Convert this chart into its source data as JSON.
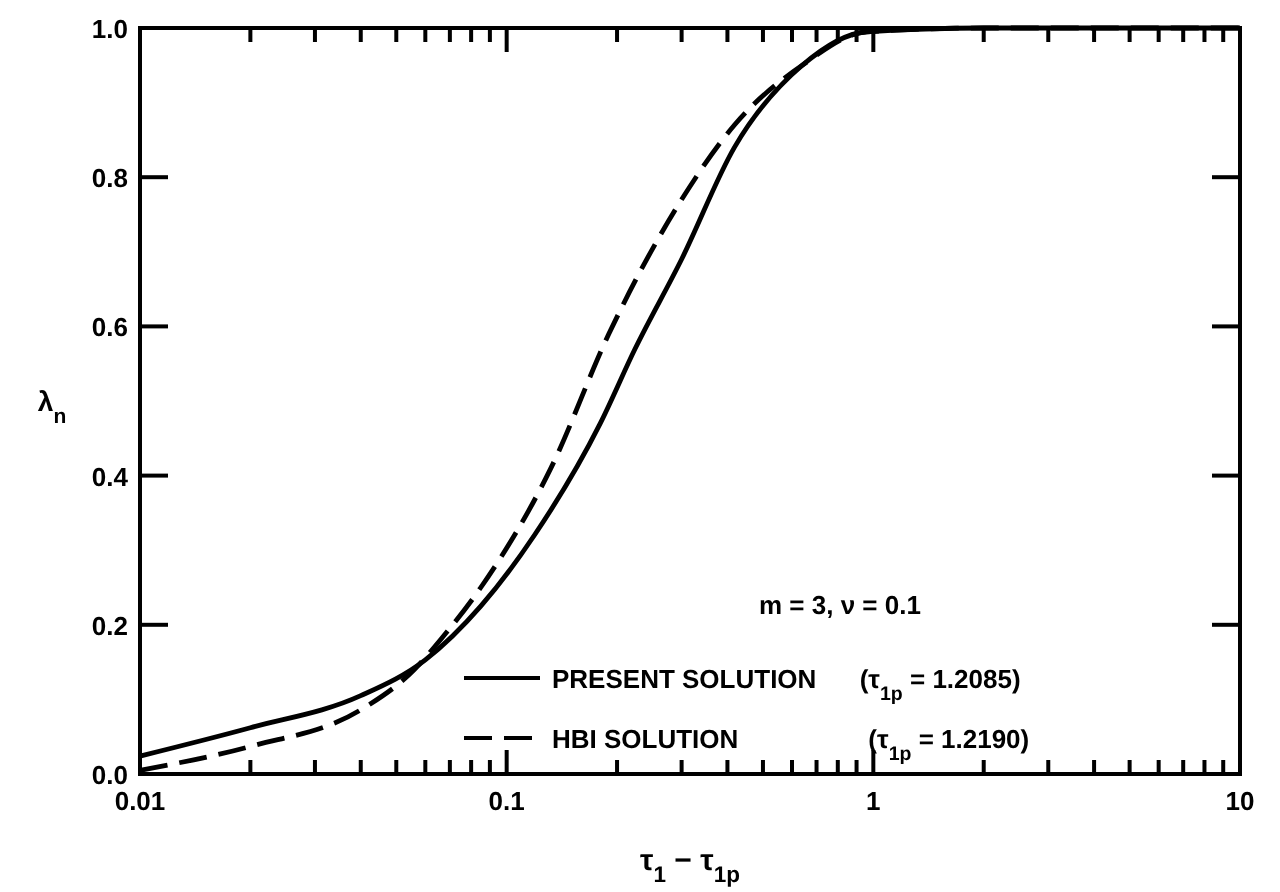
{
  "chart_data": {
    "type": "line",
    "xlabel": "τ$_{1}$ − τ$_{1p}$",
    "ylabel": "λ$_{n}$",
    "log": "x",
    "grid": false,
    "legend": "bottom right",
    "xlim": [
      0.01,
      10
    ],
    "ylim": [
      0,
      1
    ],
    "xticks": [
      {
        "value": 0.01,
        "label": "0.01"
      },
      {
        "value": 0.02,
        "label": null
      },
      {
        "value": 0.03,
        "label": null
      },
      {
        "value": 0.04,
        "label": null
      },
      {
        "value": 0.05,
        "label": null
      },
      {
        "value": 0.06,
        "label": null
      },
      {
        "value": 0.07,
        "label": null
      },
      {
        "value": 0.08,
        "label": null
      },
      {
        "value": 0.09,
        "label": null
      },
      {
        "value": 0.1,
        "label": "0.1"
      },
      {
        "value": 0.2,
        "label": null
      },
      {
        "value": 0.3,
        "label": null
      },
      {
        "value": 0.4,
        "label": null
      },
      {
        "value": 0.5,
        "label": null
      },
      {
        "value": 0.6,
        "label": null
      },
      {
        "value": 0.7,
        "label": null
      },
      {
        "value": 0.8,
        "label": null
      },
      {
        "value": 0.9,
        "label": null
      },
      {
        "value": 1,
        "label": "1"
      },
      {
        "value": 2,
        "label": null
      },
      {
        "value": 3,
        "label": null
      },
      {
        "value": 4,
        "label": null
      },
      {
        "value": 5,
        "label": null
      },
      {
        "value": 6,
        "label": null
      },
      {
        "value": 7,
        "label": null
      },
      {
        "value": 8,
        "label": null
      },
      {
        "value": 9,
        "label": null
      },
      {
        "value": 10,
        "label": "10"
      }
    ],
    "yticks": [
      {
        "value": 0,
        "label": "0.0"
      },
      {
        "value": 0.2,
        "label": "0.2"
      },
      {
        "value": 0.4,
        "label": "0.4"
      },
      {
        "value": 0.6,
        "label": "0.6"
      },
      {
        "value": 0.8,
        "label": "0.8"
      },
      {
        "value": 1,
        "label": "1.0"
      }
    ],
    "annotations": [
      "m = 3,  ν = 0.1"
    ],
    "series": [
      {
        "name": "PRESENT SOLUTION      (τ$_{1p}$ = 1.2085)",
        "color": "#000000",
        "line_style": "solid",
        "x": [
          0.01,
          0.02,
          0.04,
          0.06,
          0.085,
          0.119,
          0.18,
          0.224,
          0.3,
          0.418,
          0.64,
          0.96,
          2,
          5,
          10
        ],
        "values": [
          0.024,
          0.062,
          0.105,
          0.153,
          0.225,
          0.32,
          0.47,
          0.57,
          0.69,
          0.84,
          0.95,
          0.995,
          1,
          1,
          1
        ]
      },
      {
        "name": "HBI SOLUTION                  (τ$_{1p}$ = 1.2190)",
        "color": "#000000",
        "line_style": "dashed",
        "x": [
          0.01,
          0.02,
          0.04,
          0.056,
          0.066,
          0.085,
          0.132,
          0.19,
          0.3,
          0.418,
          0.64,
          0.96,
          2,
          5,
          10
        ],
        "values": [
          0.005,
          0.037,
          0.086,
          0.14,
          0.18,
          0.25,
          0.41,
          0.59,
          0.77,
          0.87,
          0.95,
          0.995,
          1,
          1,
          1
        ]
      }
    ]
  }
}
